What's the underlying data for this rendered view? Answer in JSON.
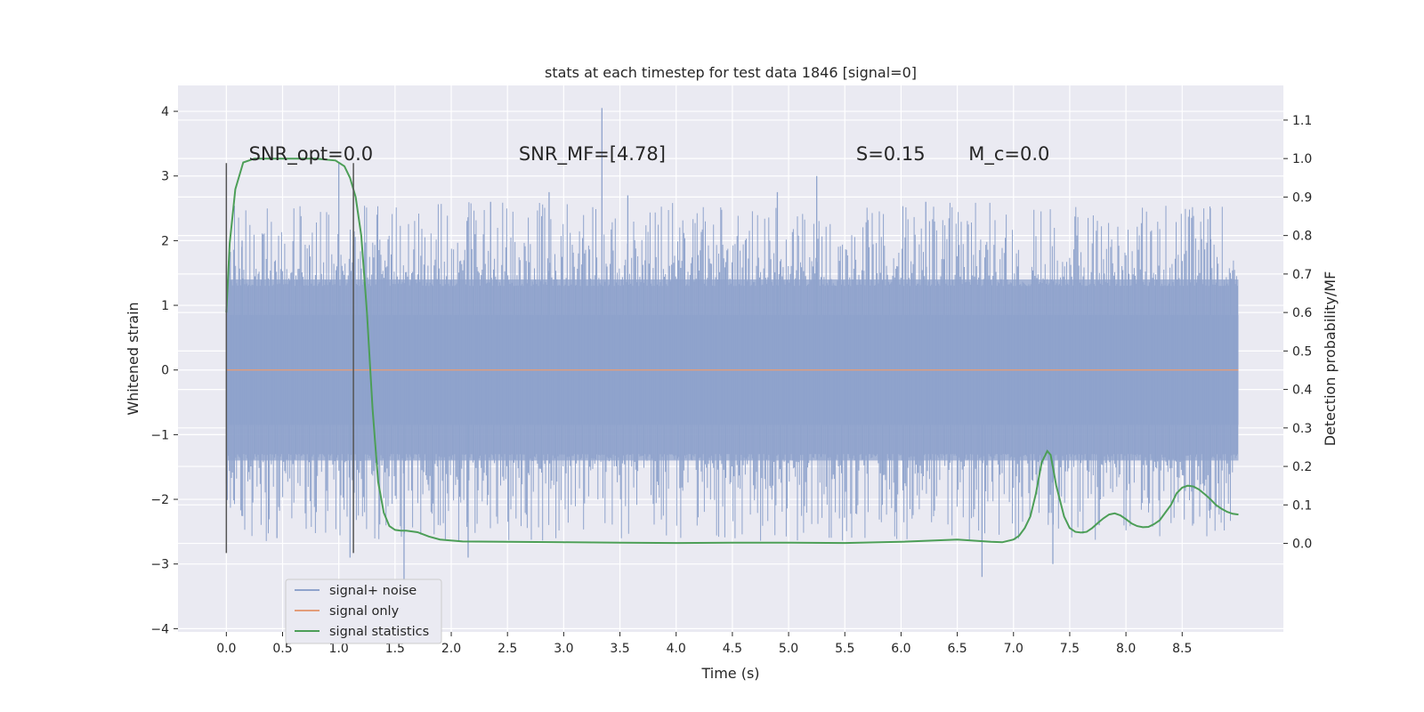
{
  "chart_data": {
    "type": "line",
    "title": "stats at each timestep for test data 1846 [signal=0]",
    "xlabel": "Time (s)",
    "ylabel": "Whitened strain",
    "y2label": "Detection probability/MF",
    "xlim": [
      -0.43,
      9.4
    ],
    "ylim": [
      -4.05,
      4.4
    ],
    "y2lim": [
      -0.23,
      1.19
    ],
    "xticks": [
      0.0,
      0.5,
      1.0,
      1.5,
      2.0,
      2.5,
      3.0,
      3.5,
      4.0,
      4.5,
      5.0,
      5.5,
      6.0,
      6.5,
      7.0,
      7.5,
      8.0,
      8.5
    ],
    "xtick_labels": [
      "0.0",
      "0.5",
      "1.0",
      "1.5",
      "2.0",
      "2.5",
      "3.0",
      "3.5",
      "4.0",
      "4.5",
      "5.0",
      "5.5",
      "6.0",
      "6.5",
      "7.0",
      "7.5",
      "8.0",
      "8.5"
    ],
    "yticks": [
      4,
      3,
      2,
      1,
      0,
      -1,
      -2,
      -3,
      -4
    ],
    "ytick_labels": [
      "4",
      "3",
      "2",
      "1",
      "0",
      "−1",
      "−2",
      "−3",
      "−4"
    ],
    "y2ticks": [
      1.1,
      1.0,
      0.9,
      0.8,
      0.7,
      0.6,
      0.5,
      0.4,
      0.3,
      0.2,
      0.1,
      0.0
    ],
    "y2tick_labels": [
      "1.1",
      "1.0",
      "0.9",
      "0.8",
      "0.7",
      "0.6",
      "0.5",
      "0.4",
      "0.3",
      "0.2",
      "0.1",
      "0.0"
    ],
    "grid": true,
    "legend_position": "lower-left",
    "annotations": [
      {
        "id": "snr_opt",
        "text": "SNR_opt=0.0",
        "x": 0.2,
        "y": 3.2
      },
      {
        "id": "snr_mf",
        "text": "SNR_MF=[4.78]",
        "x": 2.6,
        "y": 3.2
      },
      {
        "id": "s",
        "text": "S=0.15",
        "x": 5.6,
        "y": 3.2
      },
      {
        "id": "mc",
        "text": "M_c=0.0",
        "x": 6.6,
        "y": 3.2
      }
    ],
    "vertical_markers": [
      {
        "x": 0.0,
        "y_range": [
          -2.83,
          3.2
        ]
      },
      {
        "x": 1.13,
        "y_range": [
          -2.83,
          3.2
        ]
      }
    ],
    "series": [
      {
        "name": "signal+ noise",
        "color": "#8fa3cc",
        "noise_band": {
          "x_start": 0.0,
          "x_end": 9.0,
          "core_y": [
            -0.85,
            0.85
          ],
          "dense_y": [
            -1.4,
            1.4
          ],
          "peak_max": 4.05,
          "peak_min": -3.25
        }
      },
      {
        "name": "signal only",
        "color": "#e39d7a",
        "x": [
          0.0,
          9.0
        ],
        "y": [
          0.0,
          0.0
        ]
      },
      {
        "name": "signal statistics",
        "color": "#4c9e57",
        "axis": "right",
        "x": [
          0.0,
          0.03,
          0.08,
          0.15,
          0.25,
          0.4,
          0.6,
          0.8,
          0.97,
          1.05,
          1.1,
          1.15,
          1.2,
          1.25,
          1.3,
          1.35,
          1.4,
          1.45,
          1.5,
          1.55,
          1.6,
          1.7,
          1.8,
          1.9,
          2.1,
          2.5,
          3.0,
          3.5,
          4.0,
          4.5,
          5.0,
          5.5,
          6.0,
          6.5,
          6.8,
          6.9,
          7.0,
          7.05,
          7.1,
          7.15,
          7.2,
          7.25,
          7.3,
          7.33,
          7.38,
          7.45,
          7.5,
          7.55,
          7.6,
          7.65,
          7.7,
          7.75,
          7.8,
          7.85,
          7.9,
          7.95,
          8.0,
          8.05,
          8.1,
          8.15,
          8.2,
          8.25,
          8.3,
          8.35,
          8.4,
          8.45,
          8.5,
          8.55,
          8.6,
          8.65,
          8.7,
          8.75,
          8.8,
          8.85,
          8.9,
          8.95,
          9.0
        ],
        "y": [
          0.6,
          0.78,
          0.92,
          0.99,
          1.0,
          1.0,
          1.0,
          1.0,
          0.995,
          0.98,
          0.95,
          0.9,
          0.8,
          0.6,
          0.35,
          0.16,
          0.08,
          0.045,
          0.035,
          0.033,
          0.033,
          0.029,
          0.018,
          0.01,
          0.005,
          0.004,
          0.003,
          0.002,
          0.001,
          0.002,
          0.002,
          0.001,
          0.004,
          0.01,
          0.004,
          0.003,
          0.01,
          0.02,
          0.04,
          0.07,
          0.13,
          0.21,
          0.24,
          0.23,
          0.15,
          0.07,
          0.04,
          0.03,
          0.028,
          0.03,
          0.04,
          0.053,
          0.065,
          0.075,
          0.078,
          0.073,
          0.063,
          0.052,
          0.045,
          0.042,
          0.043,
          0.05,
          0.06,
          0.08,
          0.1,
          0.13,
          0.145,
          0.15,
          0.148,
          0.14,
          0.128,
          0.115,
          0.1,
          0.09,
          0.082,
          0.077,
          0.075
        ]
      }
    ]
  }
}
